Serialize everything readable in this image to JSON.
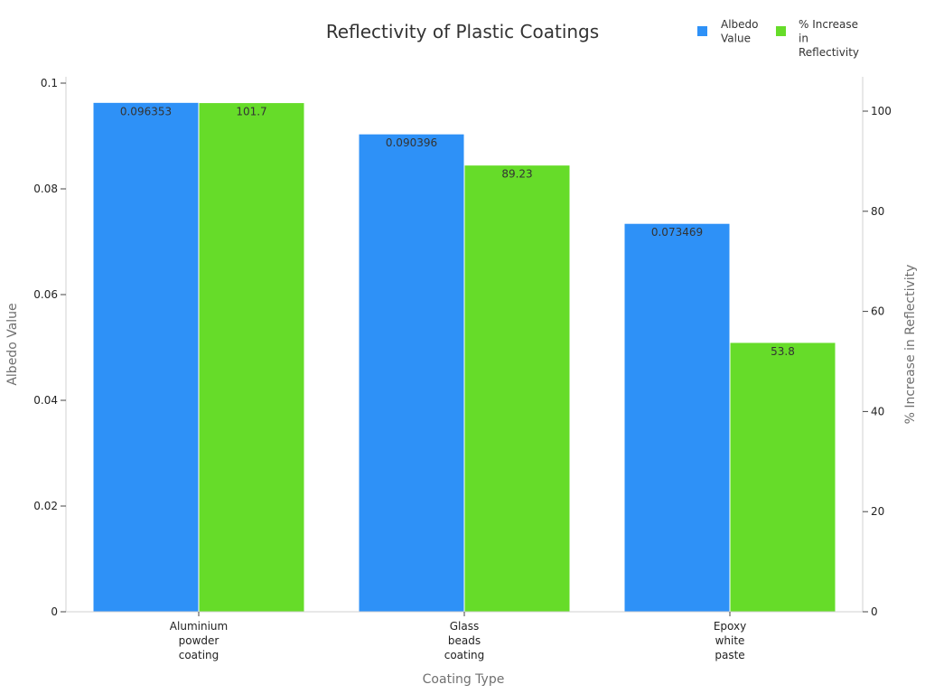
{
  "chart_data": {
    "type": "bar",
    "title": "Reflectivity of Plastic Coatings",
    "xlabel": "Coating Type",
    "ylabel": "Albedo Value",
    "y2label": "% Increase in Reflectivity",
    "categories": [
      [
        "Aluminium",
        "powder",
        "coating"
      ],
      [
        "Glass",
        "beads",
        "coating"
      ],
      [
        "Epoxy",
        "white",
        "paste"
      ]
    ],
    "ylim": [
      0,
      0.1
    ],
    "y2lim": [
      0,
      100
    ],
    "yticks": [
      "0",
      "0.02",
      "0.04",
      "0.06",
      "0.08",
      "0.1"
    ],
    "y2ticks": [
      "0",
      "20",
      "40",
      "60",
      "80",
      "100"
    ],
    "series": [
      {
        "name": "Albedo Value",
        "legend_lines": [
          "Albedo",
          "Value"
        ],
        "axis": "left",
        "color": "#2E91F7",
        "values": [
          0.096353,
          0.090396,
          0.073469
        ],
        "labels": [
          "0.096353",
          "0.090396",
          "0.073469"
        ]
      },
      {
        "name": "% Increase in Reflectivity",
        "legend_lines": [
          "% Increase",
          "in",
          "Reflectivity"
        ],
        "axis": "right",
        "color": "#66DC29",
        "values": [
          101.7,
          89.23,
          53.8
        ],
        "labels": [
          "101.7",
          "89.23",
          "53.8"
        ]
      }
    ],
    "legend": "top-right",
    "grid": false
  }
}
